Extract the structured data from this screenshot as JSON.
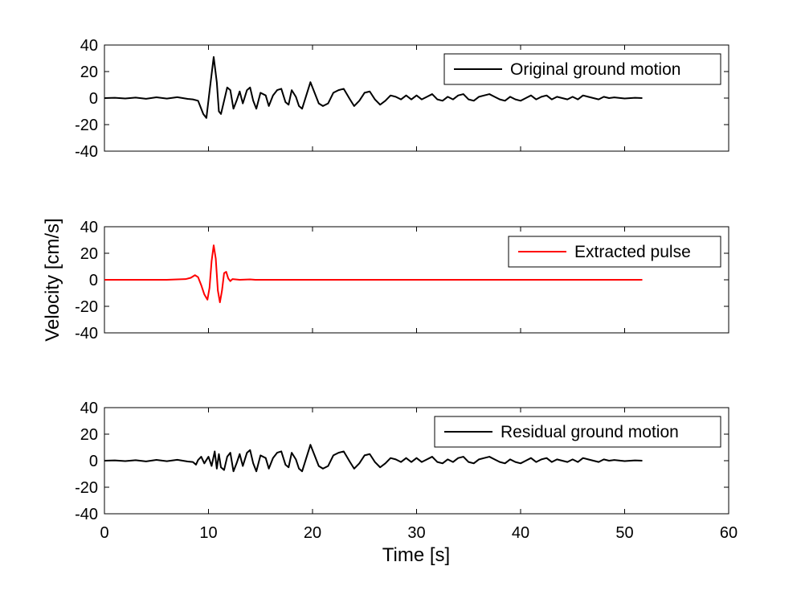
{
  "chart_data": {
    "type": "line",
    "ylabel": "Velocity [cm/s]",
    "xlabel": "Time [s]",
    "xlim": [
      0,
      60
    ],
    "ylim": [
      -40,
      40
    ],
    "xticks": [
      "0",
      "10",
      "20",
      "30",
      "40",
      "50",
      "60"
    ],
    "yticks": [
      "-40",
      "-20",
      "0",
      "20",
      "40"
    ],
    "duration": 51.7,
    "legend_position": "top-right",
    "panels": [
      {
        "legend": "Original ground motion",
        "color": "#000000",
        "points": [
          [
            0,
            0
          ],
          [
            1,
            0.2
          ],
          [
            2,
            -0.3
          ],
          [
            3,
            0.4
          ],
          [
            4,
            -0.5
          ],
          [
            5,
            0.6
          ],
          [
            6,
            -0.4
          ],
          [
            7,
            0.7
          ],
          [
            8,
            -0.6
          ],
          [
            8.5,
            -1
          ],
          [
            9,
            -2
          ],
          [
            9.5,
            -12
          ],
          [
            9.8,
            -15
          ],
          [
            10.1,
            5
          ],
          [
            10.5,
            31
          ],
          [
            10.8,
            12
          ],
          [
            11,
            -10
          ],
          [
            11.2,
            -12
          ],
          [
            11.5,
            -2
          ],
          [
            11.8,
            8
          ],
          [
            12.1,
            6
          ],
          [
            12.4,
            -8
          ],
          [
            12.7,
            -2
          ],
          [
            13,
            5
          ],
          [
            13.3,
            -4
          ],
          [
            13.7,
            6
          ],
          [
            14,
            8
          ],
          [
            14.3,
            -2
          ],
          [
            14.6,
            -8
          ],
          [
            15,
            4
          ],
          [
            15.5,
            2
          ],
          [
            15.8,
            -6
          ],
          [
            16.2,
            2
          ],
          [
            16.6,
            6
          ],
          [
            17,
            7
          ],
          [
            17.4,
            -3
          ],
          [
            17.7,
            -5
          ],
          [
            18,
            6
          ],
          [
            18.4,
            1
          ],
          [
            18.7,
            -6
          ],
          [
            19,
            -8
          ],
          [
            19.4,
            2
          ],
          [
            19.8,
            12
          ],
          [
            20.2,
            4
          ],
          [
            20.6,
            -4
          ],
          [
            21,
            -6
          ],
          [
            21.5,
            -4
          ],
          [
            22,
            4
          ],
          [
            22.5,
            6
          ],
          [
            23,
            7
          ],
          [
            23.6,
            -1
          ],
          [
            24,
            -6
          ],
          [
            24.5,
            -2
          ],
          [
            25,
            4
          ],
          [
            25.5,
            5
          ],
          [
            26,
            -1
          ],
          [
            26.5,
            -5
          ],
          [
            27,
            -2
          ],
          [
            27.5,
            2
          ],
          [
            28,
            1
          ],
          [
            28.5,
            -1
          ],
          [
            29,
            2
          ],
          [
            29.5,
            -1
          ],
          [
            30,
            2
          ],
          [
            30.5,
            -1
          ],
          [
            31,
            1
          ],
          [
            31.5,
            3
          ],
          [
            32,
            -1
          ],
          [
            32.5,
            -2
          ],
          [
            33,
            1
          ],
          [
            33.5,
            -1
          ],
          [
            34,
            2
          ],
          [
            34.5,
            3
          ],
          [
            35,
            -1
          ],
          [
            35.5,
            -2
          ],
          [
            36,
            1
          ],
          [
            36.5,
            2
          ],
          [
            37,
            3
          ],
          [
            37.5,
            1
          ],
          [
            38,
            -1
          ],
          [
            38.5,
            -2
          ],
          [
            39,
            1
          ],
          [
            39.5,
            -1
          ],
          [
            40,
            -2
          ],
          [
            40.5,
            0
          ],
          [
            41,
            2
          ],
          [
            41.5,
            -1
          ],
          [
            42,
            1
          ],
          [
            42.5,
            2
          ],
          [
            43,
            -1
          ],
          [
            43.5,
            1
          ],
          [
            44,
            0
          ],
          [
            44.5,
            -1
          ],
          [
            45,
            1
          ],
          [
            45.5,
            -1
          ],
          [
            46,
            2
          ],
          [
            46.5,
            1
          ],
          [
            47,
            0
          ],
          [
            47.5,
            -1
          ],
          [
            48,
            1
          ],
          [
            48.5,
            0
          ],
          [
            49,
            0.5
          ],
          [
            50,
            -0.3
          ],
          [
            51,
            0.2
          ],
          [
            51.7,
            0
          ]
        ]
      },
      {
        "legend": "Extracted pulse",
        "color": "#ff0000",
        "points": [
          [
            0,
            0
          ],
          [
            6,
            0
          ],
          [
            7,
            0.3
          ],
          [
            7.8,
            0.5
          ],
          [
            8.3,
            1.5
          ],
          [
            8.7,
            3.5
          ],
          [
            9,
            2
          ],
          [
            9.3,
            -4
          ],
          [
            9.6,
            -11
          ],
          [
            9.9,
            -15
          ],
          [
            10.1,
            -6
          ],
          [
            10.3,
            14
          ],
          [
            10.5,
            26
          ],
          [
            10.7,
            16
          ],
          [
            10.9,
            -8
          ],
          [
            11.1,
            -17
          ],
          [
            11.3,
            -8
          ],
          [
            11.5,
            5
          ],
          [
            11.7,
            6
          ],
          [
            11.9,
            1
          ],
          [
            12.1,
            -1
          ],
          [
            12.3,
            0.5
          ],
          [
            13,
            0
          ],
          [
            14,
            0.3
          ],
          [
            14.5,
            0
          ],
          [
            51.7,
            0
          ]
        ]
      },
      {
        "legend": "Residual ground motion",
        "color": "#000000",
        "points": [
          [
            0,
            0
          ],
          [
            1,
            0.2
          ],
          [
            2,
            -0.3
          ],
          [
            3,
            0.4
          ],
          [
            4,
            -0.5
          ],
          [
            5,
            0.6
          ],
          [
            6,
            -0.4
          ],
          [
            7,
            0.7
          ],
          [
            8,
            -0.6
          ],
          [
            8.5,
            -1
          ],
          [
            8.8,
            -3
          ],
          [
            9,
            0.5
          ],
          [
            9.3,
            3
          ],
          [
            9.6,
            -2
          ],
          [
            10,
            3
          ],
          [
            10.3,
            -4
          ],
          [
            10.6,
            7
          ],
          [
            10.8,
            -6
          ],
          [
            11,
            5
          ],
          [
            11.2,
            -5
          ],
          [
            11.5,
            -7
          ],
          [
            11.8,
            3
          ],
          [
            12.1,
            6
          ],
          [
            12.4,
            -8
          ],
          [
            12.7,
            -2
          ],
          [
            13,
            5
          ],
          [
            13.3,
            -4
          ],
          [
            13.7,
            6
          ],
          [
            14,
            8
          ],
          [
            14.3,
            -2
          ],
          [
            14.6,
            -8
          ],
          [
            15,
            4
          ],
          [
            15.5,
            2
          ],
          [
            15.8,
            -6
          ],
          [
            16.2,
            2
          ],
          [
            16.6,
            6
          ],
          [
            17,
            7
          ],
          [
            17.4,
            -3
          ],
          [
            17.7,
            -5
          ],
          [
            18,
            6
          ],
          [
            18.4,
            1
          ],
          [
            18.7,
            -6
          ],
          [
            19,
            -8
          ],
          [
            19.4,
            2
          ],
          [
            19.8,
            12
          ],
          [
            20.2,
            4
          ],
          [
            20.6,
            -4
          ],
          [
            21,
            -6
          ],
          [
            21.5,
            -4
          ],
          [
            22,
            4
          ],
          [
            22.5,
            6
          ],
          [
            23,
            7
          ],
          [
            23.6,
            -1
          ],
          [
            24,
            -6
          ],
          [
            24.5,
            -2
          ],
          [
            25,
            4
          ],
          [
            25.5,
            5
          ],
          [
            26,
            -1
          ],
          [
            26.5,
            -5
          ],
          [
            27,
            -2
          ],
          [
            27.5,
            2
          ],
          [
            28,
            1
          ],
          [
            28.5,
            -1
          ],
          [
            29,
            2
          ],
          [
            29.5,
            -1
          ],
          [
            30,
            2
          ],
          [
            30.5,
            -1
          ],
          [
            31,
            1
          ],
          [
            31.5,
            3
          ],
          [
            32,
            -1
          ],
          [
            32.5,
            -2
          ],
          [
            33,
            1
          ],
          [
            33.5,
            -1
          ],
          [
            34,
            2
          ],
          [
            34.5,
            3
          ],
          [
            35,
            -1
          ],
          [
            35.5,
            -2
          ],
          [
            36,
            1
          ],
          [
            36.5,
            2
          ],
          [
            37,
            3
          ],
          [
            37.5,
            1
          ],
          [
            38,
            -1
          ],
          [
            38.5,
            -2
          ],
          [
            39,
            1
          ],
          [
            39.5,
            -1
          ],
          [
            40,
            -2
          ],
          [
            40.5,
            0
          ],
          [
            41,
            2
          ],
          [
            41.5,
            -1
          ],
          [
            42,
            1
          ],
          [
            42.5,
            2
          ],
          [
            43,
            -1
          ],
          [
            43.5,
            1
          ],
          [
            44,
            0
          ],
          [
            44.5,
            -1
          ],
          [
            45,
            1
          ],
          [
            45.5,
            -1
          ],
          [
            46,
            2
          ],
          [
            46.5,
            1
          ],
          [
            47,
            0
          ],
          [
            47.5,
            -1
          ],
          [
            48,
            1
          ],
          [
            48.5,
            0
          ],
          [
            49,
            0.5
          ],
          [
            50,
            -0.3
          ],
          [
            51,
            0.2
          ],
          [
            51.7,
            0
          ]
        ]
      }
    ]
  }
}
